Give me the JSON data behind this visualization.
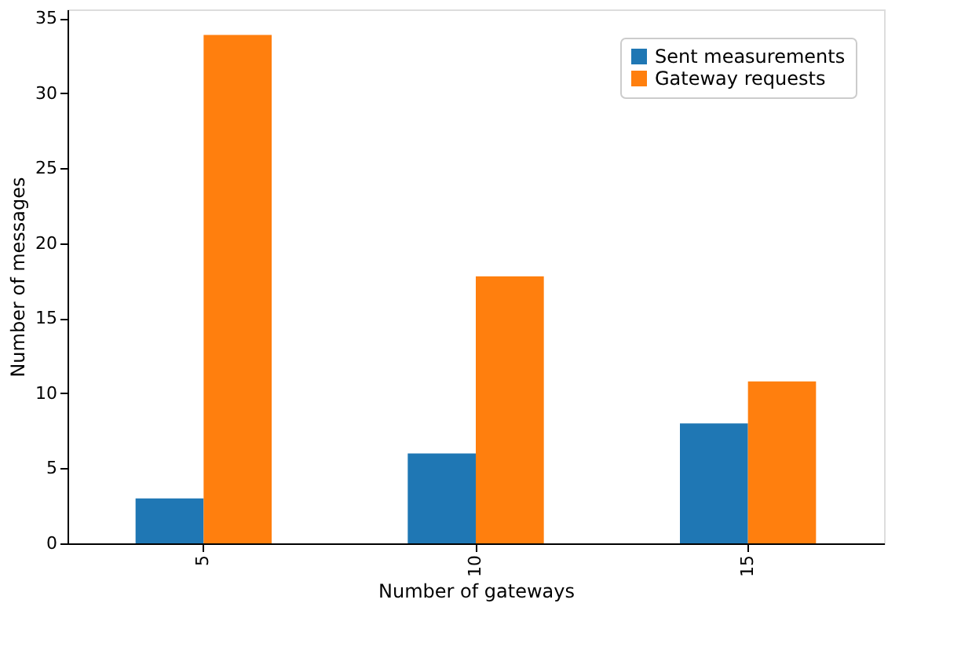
{
  "chart_data": {
    "type": "bar",
    "xlabel": "Number of gateways",
    "ylabel": "Number of messages",
    "categories": [
      "5",
      "10",
      "15"
    ],
    "series": [
      {
        "name": "Sent measurements",
        "color": "#1f77b4",
        "values": [
          3,
          6,
          8
        ]
      },
      {
        "name": "Gateway requests",
        "color": "#ff7f0e",
        "values": [
          33.9,
          17.8,
          10.8
        ]
      }
    ],
    "ylim": [
      0,
      35.6
    ],
    "yticks": [
      0,
      5,
      10,
      15,
      20,
      25,
      30,
      35
    ],
    "grid": false,
    "legend": "top right"
  }
}
